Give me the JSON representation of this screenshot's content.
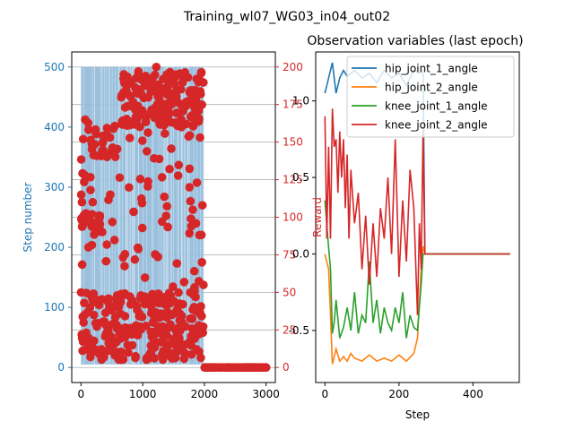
{
  "figure": {
    "suptitle": "Training_wl07_WG03_in04_out02"
  },
  "chart_data": [
    {
      "type": "scatter",
      "description_role": "left-panel",
      "title": "",
      "xlabel": "",
      "ylabel_left": "Step number",
      "ylabel_right": "",
      "xlim": [
        -150,
        3150
      ],
      "ylim_left": [
        -25,
        525
      ],
      "ylim_right": [
        -10,
        210
      ],
      "xticks": [
        0,
        1000,
        2000,
        3000
      ],
      "yticks_left": [
        0,
        100,
        200,
        300,
        400,
        500
      ],
      "yticks_right": [
        0,
        25,
        50,
        75,
        100,
        125,
        150,
        175,
        200
      ],
      "left_axis_color": "#1f77b4",
      "right_axis_color": "#d62728",
      "grid": "horizontal at right-axis ticks",
      "series": [
        {
          "axis": "left",
          "kind": "dense-vertical-lines",
          "color": "#8fb9d9",
          "x_range": [
            0,
            1990
          ],
          "y_range": [
            5,
            500
          ]
        },
        {
          "axis": "right",
          "kind": "scatter",
          "color": "#d62728",
          "clusters": [
            {
              "x": [
                0,
                1990
              ],
              "y": [
                5,
                50
              ],
              "count": 260
            },
            {
              "x": [
                0,
                1990
              ],
              "y": [
                50,
                110
              ],
              "count": 40
            },
            {
              "x": [
                0,
                1990
              ],
              "y": [
                110,
                170
              ],
              "count": 45
            },
            {
              "x": [
                650,
                1990
              ],
              "y": [
                160,
                198
              ],
              "count": 180
            },
            {
              "x": [
                0,
                320
              ],
              "y": [
                93,
                103
              ],
              "count": 30
            },
            {
              "x": [
                80,
                620
              ],
              "y": [
                140,
                160
              ],
              "count": 25
            },
            {
              "x": [
                1990,
                3000
              ],
              "y": [
                0,
                0
              ],
              "count": 120
            }
          ],
          "sample_points": [
            [
              1,
              50
            ],
            [
              3,
              115
            ],
            [
              15,
              110
            ],
            [
              27,
              100
            ],
            [
              35,
              152
            ],
            [
              60,
              128
            ],
            [
              90,
              100
            ],
            [
              120,
              80
            ],
            [
              190,
              110
            ],
            [
              1220,
              200
            ],
            [
              1390,
              195
            ],
            [
              1960,
              70
            ],
            [
              1985,
              55
            ],
            [
              2030,
              0
            ],
            [
              2400,
              0
            ],
            [
              2800,
              0
            ],
            [
              3000,
              0
            ]
          ]
        }
      ]
    },
    {
      "type": "line",
      "description_role": "right-panel",
      "title": "Observation variables (last epoch)",
      "xlabel": "Step",
      "ylabel": "Reward",
      "xlim": [
        -25,
        525
      ],
      "ylim": [
        -0.84,
        1.32
      ],
      "xticks": [
        0,
        200,
        400
      ],
      "yticks": [
        -0.5,
        0.0,
        0.5,
        1.0
      ],
      "legend": "upper-right",
      "series": [
        {
          "name": "hip_joint_1_angle",
          "color": "#1f77b4",
          "x": [
            0,
            10,
            20,
            30,
            40,
            50,
            60,
            80,
            100,
            120,
            140,
            160,
            180,
            200,
            220,
            240,
            255,
            265,
            270,
            500
          ],
          "y": [
            1.05,
            1.15,
            1.25,
            1.05,
            1.15,
            1.2,
            1.16,
            1.2,
            1.15,
            1.18,
            1.12,
            1.2,
            1.15,
            1.18,
            1.1,
            1.2,
            1.18,
            1.2,
            0.0,
            0.0
          ]
        },
        {
          "name": "hip_joint_2_angle",
          "color": "#ff7f0e",
          "x": [
            0,
            10,
            15,
            20,
            30,
            40,
            50,
            60,
            70,
            80,
            100,
            120,
            140,
            160,
            180,
            200,
            220,
            240,
            250,
            260,
            265,
            270,
            500
          ],
          "y": [
            0.0,
            -0.1,
            -0.4,
            -0.72,
            -0.62,
            -0.7,
            -0.67,
            -0.7,
            -0.65,
            -0.68,
            -0.7,
            -0.66,
            -0.7,
            -0.68,
            -0.7,
            -0.66,
            -0.7,
            -0.65,
            -0.55,
            -0.1,
            0.05,
            0.0,
            0.0
          ]
        },
        {
          "name": "knee_joint_1_angle",
          "color": "#2ca02c",
          "x": [
            0,
            8,
            15,
            20,
            25,
            30,
            40,
            50,
            60,
            70,
            80,
            90,
            100,
            110,
            120,
            130,
            140,
            150,
            160,
            170,
            180,
            190,
            200,
            210,
            220,
            230,
            240,
            250,
            260,
            265,
            270,
            500
          ],
          "y": [
            0.35,
            0.1,
            -0.1,
            -0.52,
            -0.45,
            -0.3,
            -0.55,
            -0.48,
            -0.35,
            -0.5,
            -0.25,
            -0.52,
            -0.4,
            -0.45,
            -0.05,
            -0.45,
            -0.3,
            -0.52,
            -0.35,
            -0.45,
            -0.5,
            -0.35,
            -0.45,
            -0.25,
            -0.55,
            -0.4,
            -0.48,
            -0.5,
            -0.2,
            0.0,
            0.0,
            0.0
          ]
        },
        {
          "name": "knee_joint_2_angle",
          "color": "#d62728",
          "x": [
            0,
            5,
            10,
            15,
            20,
            25,
            30,
            35,
            40,
            45,
            50,
            55,
            60,
            65,
            70,
            80,
            90,
            100,
            110,
            120,
            130,
            140,
            150,
            160,
            170,
            180,
            190,
            200,
            210,
            220,
            230,
            240,
            250,
            255,
            260,
            265,
            270,
            500
          ],
          "y": [
            0.9,
            0.1,
            0.7,
            0.1,
            0.95,
            0.7,
            0.75,
            0.4,
            0.8,
            0.5,
            0.75,
            0.3,
            0.65,
            0.1,
            0.55,
            0.2,
            0.4,
            -0.1,
            0.25,
            -0.2,
            0.2,
            -0.15,
            0.3,
            0.1,
            0.5,
            0.0,
            0.75,
            -0.15,
            0.35,
            -0.05,
            0.55,
            0.3,
            -0.4,
            0.2,
            -0.1,
            0.8,
            0.0,
            0.0
          ]
        }
      ]
    }
  ]
}
